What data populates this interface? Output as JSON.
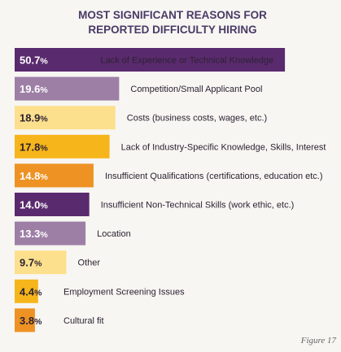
{
  "chart_data": {
    "type": "bar",
    "orientation": "horizontal",
    "title_lines": [
      "MOST SIGNIFICANT REASONS FOR",
      "REPORTED DIFFICULTY HIRING"
    ],
    "value_suffix": "%",
    "categories": [
      "Lack of Experience or Technical Knowledge",
      "Competition/Small Applicant Pool",
      "Costs (business costs, wages, etc.)",
      "Lack of Industry-Specific Knowledge, Skills, Interest",
      "Insufficient Qualifications (certifications, education etc.)",
      "Insufficient Non-Technical Skills (work ethic, etc.)",
      "Location",
      "Other",
      "Employment Screening Issues",
      "Cultural fit"
    ],
    "values": [
      50.7,
      19.6,
      18.9,
      17.8,
      14.8,
      14.0,
      13.3,
      9.7,
      4.4,
      3.8
    ],
    "bar_colors": [
      "#5a2a6e",
      "#9d7fa6",
      "#fde08d",
      "#f6b51a",
      "#ee9224",
      "#5a2a6e",
      "#9d7fa6",
      "#fde08d",
      "#f6b51a",
      "#ee9224"
    ],
    "value_text_colors": [
      "#ffffff",
      "#ffffff",
      "#2b2233",
      "#2b2233",
      "#ffffff",
      "#ffffff",
      "#ffffff",
      "#2b2233",
      "#2b2233",
      "#2b2233"
    ],
    "grid": false,
    "legend": "none"
  },
  "figure_label": "Figure 17"
}
